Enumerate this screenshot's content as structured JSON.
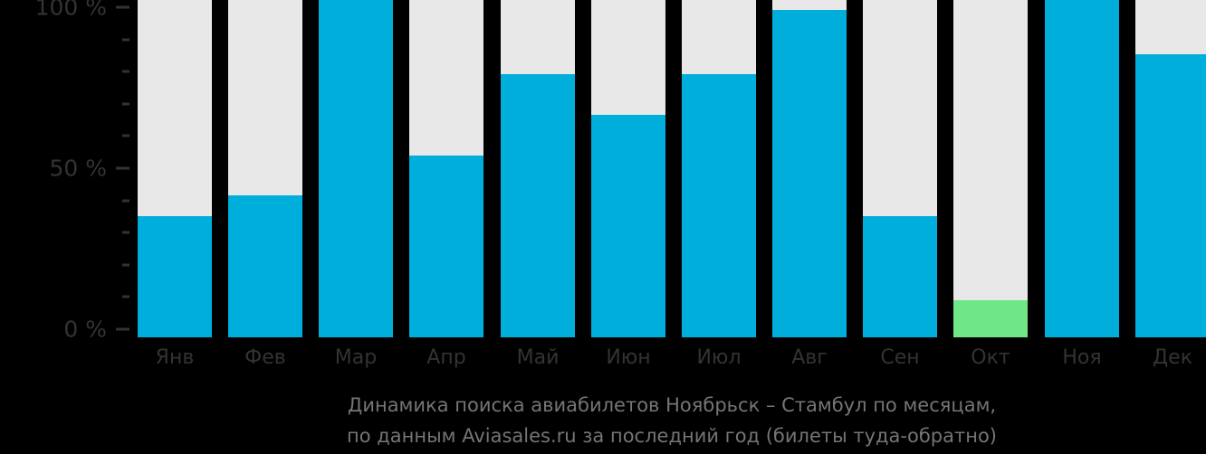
{
  "chart_data": {
    "type": "bar",
    "title": "Динамика поиска авиабилетов Ноябрьск – Стамбул по месяцам,",
    "subtitle": "по данным Aviasales.ru за последний год (билеты туда-обратно)",
    "categories": [
      "Янв",
      "Фев",
      "Мар",
      "Апр",
      "Май",
      "Июн",
      "Июл",
      "Авг",
      "Сен",
      "Окт",
      "Ноя",
      "Дек"
    ],
    "values": [
      36,
      42,
      100,
      54,
      78,
      66,
      78,
      97,
      36,
      11,
      100,
      84
    ],
    "ylim": [
      0,
      100
    ],
    "yaxis": {
      "major_ticks": [
        {
          "value": 100,
          "label": "100 %"
        },
        {
          "value": 50,
          "label": "50 %"
        },
        {
          "value": 0,
          "label": "0 %"
        }
      ],
      "minor_tick_step": 10
    },
    "highlight_index": 9,
    "grid": "off",
    "legend": "none",
    "colors": {
      "bar": "#00AEDC",
      "highlight": "#70E787",
      "track": "#E8E8E8",
      "axis_text": "#333333",
      "tick_mark": "#333333",
      "title_text": "#757575",
      "background": "#000000"
    }
  }
}
